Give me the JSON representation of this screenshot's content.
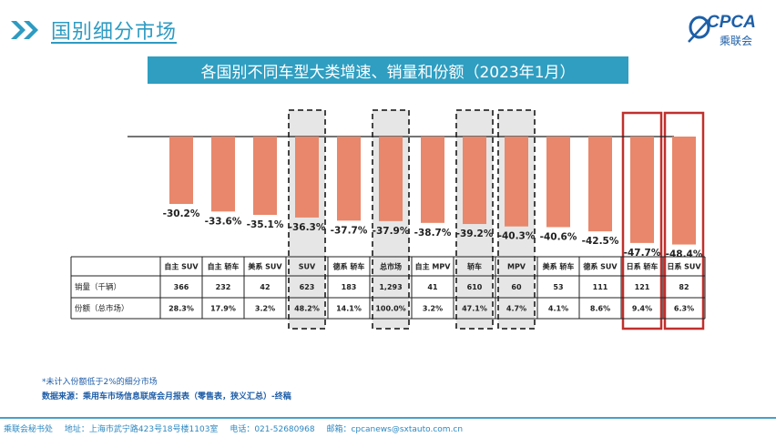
{
  "header": {
    "title": "国别细分市场",
    "logo_text": "CPCA",
    "logo_sub": "乘联会"
  },
  "banner": "各国别不同车型大类增速、销量和份额（2023年1月）",
  "table": {
    "row_labels": [
      "销量（千辆）",
      "份额（总市场）"
    ]
  },
  "chart_data": {
    "type": "bar",
    "title": "各国别不同车型大类增速、销量和份额（2023年1月）",
    "categories": [
      "自主 SUV",
      "自主 轿车",
      "美系 SUV",
      "SUV",
      "德系 轿车",
      "总市场",
      "自主 MPV",
      "轿车",
      "MPV",
      "美系 轿车",
      "德系 SUV",
      "日系 轿车",
      "日系 SUV"
    ],
    "series": [
      {
        "values": [
          -30.2,
          -33.6,
          -35.1,
          -36.3,
          -37.7,
          -37.9,
          -38.7,
          -39.2,
          -40.3,
          -40.6,
          -42.5,
          -47.7,
          -48.4
        ]
      }
    ],
    "value_labels": [
      "-30.2%",
      "-33.6%",
      "-35.1%",
      "-36.3%",
      "-37.7%",
      "-37.9%",
      "-38.7%",
      "-39.2%",
      "-40.3%",
      "-40.6%",
      "-42.5%",
      "-47.7%",
      "-48.4%"
    ],
    "sales": [
      "366",
      "232",
      "42",
      "623",
      "183",
      "1,293",
      "41",
      "610",
      "60",
      "53",
      "111",
      "121",
      "82"
    ],
    "share": [
      "28.3%",
      "17.9%",
      "3.2%",
      "48.2%",
      "14.1%",
      "100.0%",
      "3.2%",
      "47.1%",
      "4.7%",
      "4.1%",
      "8.6%",
      "9.4%",
      "6.3%"
    ],
    "ylim": [
      -50,
      0
    ],
    "bar_color": "#e8876b",
    "dashed_highlight": [
      "SUV",
      "总市场",
      "轿车",
      "MPV"
    ],
    "red_highlight": [
      "日系 轿车",
      "日系 SUV"
    ],
    "highlight_gray": "#e6e6e6",
    "red_color": "#c0302d"
  },
  "footnotes": [
    "*未计入份额低于2%的细分市场",
    "数据来源：乘用车市场信息联席会月报表（零售表，狭义汇总）-终稿"
  ],
  "footer": {
    "org": "乘联会秘书处",
    "address": "地址：上海市武宁路423号18号楼1103室",
    "phone": "电话：021-52680968",
    "email": "邮箱：cpcanews@sxtauto.com.cn"
  },
  "colors": {
    "accent": "#2f9ec1",
    "brand": "#1d5fa8"
  }
}
